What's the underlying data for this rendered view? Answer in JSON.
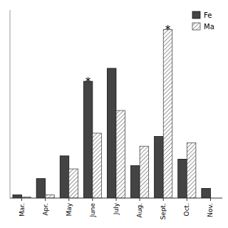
{
  "chart_data": {
    "type": "bar",
    "categories": [
      "Mar.",
      "Apr.",
      "May",
      "June",
      "July",
      "Aug.",
      "Sept.",
      "Oct.",
      "Nov."
    ],
    "series": [
      {
        "name": "Fe",
        "color": "#444444",
        "values": [
          1,
          6,
          13,
          36,
          40,
          10,
          19,
          12,
          3
        ]
      },
      {
        "name": "Ma",
        "color": "#ffffff",
        "values": [
          0.3,
          1,
          9,
          20,
          27,
          16,
          52,
          17,
          0
        ]
      }
    ],
    "ylim": [
      0,
      58
    ],
    "yticks": [],
    "tick_labels": "x",
    "grid": false,
    "legend": "upper right",
    "annotations": [
      {
        "text": "*",
        "series": "Fe",
        "category": "June"
      },
      {
        "text": "*",
        "series": "Ma",
        "category": "Sept."
      }
    ]
  }
}
